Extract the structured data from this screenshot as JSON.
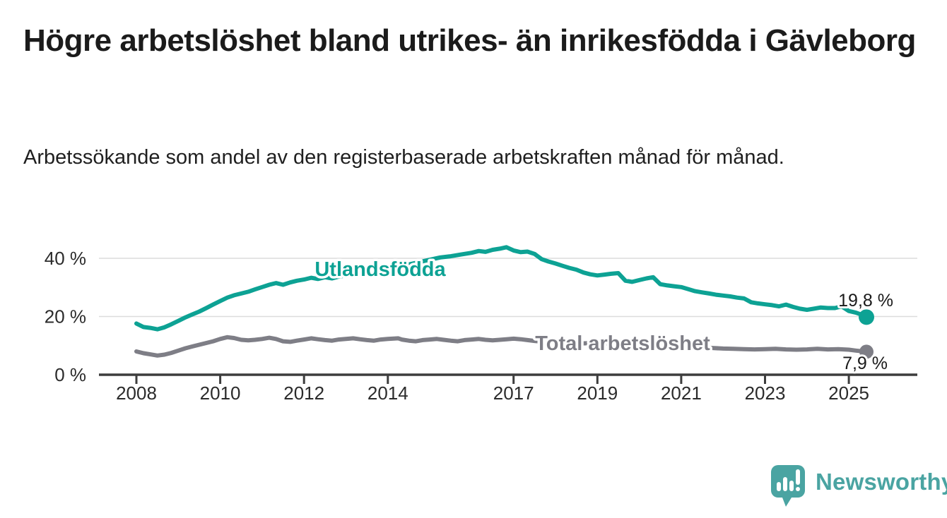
{
  "header": {
    "title": "Högre arbetslöshet bland utrikes- än inrikesfödda i Gävleborg",
    "subtitle": "Arbetssökande som andel av den registerbaserade arbetskraften månad för månad."
  },
  "branding": {
    "logo_text": "Newsworthy",
    "logo_icon": "speech-bubble-bar-chart-icon",
    "brand_color": "#4AA4A2"
  },
  "colors": {
    "series_utlandsfodda": "#0DA294",
    "series_total": "#7E7E86",
    "axis": "#3D3D3D",
    "gridline": "#DCDCDC",
    "tick_text": "#2B2B2B",
    "value_text": "#1A1A1A",
    "background": "#FFFFFF"
  },
  "chart_data": {
    "type": "line",
    "title": "Högre arbetslöshet bland utrikes- än inrikesfödda i Gävleborg",
    "subtitle": "Arbetssökande som andel av den registerbaserade arbetskraften månad för månad.",
    "unit": "%",
    "grid": "horizontal-only",
    "legend_position": "inline-labels",
    "x_axis": {
      "ticks": [
        2008,
        2010,
        2012,
        2014,
        2017,
        2019,
        2021,
        2023,
        2025
      ],
      "range": [
        2007.1,
        2026.6
      ]
    },
    "y_axis": {
      "ticks": [
        0,
        20,
        40
      ],
      "tick_labels": [
        "0 %",
        "20 %",
        "40 %"
      ],
      "range": [
        0,
        48
      ]
    },
    "series": [
      {
        "name": "Utlandsfödda",
        "color": "#0DA294",
        "end_label": "19,8 %",
        "end_value": 19.8,
        "points": [
          [
            2008.0,
            17.6
          ],
          [
            2008.17,
            16.4
          ],
          [
            2008.33,
            16.1
          ],
          [
            2008.5,
            15.6
          ],
          [
            2008.67,
            16.3
          ],
          [
            2008.83,
            17.3
          ],
          [
            2009.0,
            18.5
          ],
          [
            2009.17,
            19.7
          ],
          [
            2009.33,
            20.7
          ],
          [
            2009.5,
            21.7
          ],
          [
            2009.67,
            22.9
          ],
          [
            2009.83,
            24.1
          ],
          [
            2010.0,
            25.3
          ],
          [
            2010.17,
            26.5
          ],
          [
            2010.33,
            27.3
          ],
          [
            2010.5,
            27.9
          ],
          [
            2010.67,
            28.5
          ],
          [
            2010.83,
            29.3
          ],
          [
            2011.0,
            30.1
          ],
          [
            2011.17,
            30.9
          ],
          [
            2011.33,
            31.5
          ],
          [
            2011.5,
            30.9
          ],
          [
            2011.67,
            31.7
          ],
          [
            2011.83,
            32.3
          ],
          [
            2012.0,
            32.7
          ],
          [
            2012.17,
            33.3
          ],
          [
            2012.33,
            32.9
          ],
          [
            2012.5,
            33.5
          ],
          [
            2012.67,
            33.1
          ],
          [
            2012.83,
            33.7
          ],
          [
            2013.0,
            34.1
          ],
          [
            2013.25,
            34.7
          ],
          [
            2013.5,
            35.3
          ],
          [
            2013.75,
            35.9
          ],
          [
            2014.0,
            36.5
          ],
          [
            2014.25,
            37.3
          ],
          [
            2014.5,
            37.9
          ],
          [
            2014.75,
            38.7
          ],
          [
            2015.0,
            39.5
          ],
          [
            2015.25,
            40.3
          ],
          [
            2015.5,
            40.7
          ],
          [
            2015.75,
            41.3
          ],
          [
            2016.0,
            41.9
          ],
          [
            2016.17,
            42.5
          ],
          [
            2016.33,
            42.2
          ],
          [
            2016.5,
            42.9
          ],
          [
            2016.67,
            43.3
          ],
          [
            2016.83,
            43.8
          ],
          [
            2017.0,
            42.7
          ],
          [
            2017.17,
            42.1
          ],
          [
            2017.33,
            42.3
          ],
          [
            2017.5,
            41.5
          ],
          [
            2017.67,
            39.7
          ],
          [
            2017.83,
            38.9
          ],
          [
            2018.0,
            38.2
          ],
          [
            2018.17,
            37.4
          ],
          [
            2018.33,
            36.7
          ],
          [
            2018.5,
            36.1
          ],
          [
            2018.67,
            35.1
          ],
          [
            2018.83,
            34.5
          ],
          [
            2019.0,
            34.1
          ],
          [
            2019.17,
            34.4
          ],
          [
            2019.33,
            34.7
          ],
          [
            2019.5,
            34.9
          ],
          [
            2019.67,
            32.3
          ],
          [
            2019.83,
            31.9
          ],
          [
            2020.0,
            32.5
          ],
          [
            2020.17,
            33.1
          ],
          [
            2020.33,
            33.5
          ],
          [
            2020.5,
            31.1
          ],
          [
            2020.67,
            30.7
          ],
          [
            2020.83,
            30.4
          ],
          [
            2021.0,
            30.1
          ],
          [
            2021.17,
            29.4
          ],
          [
            2021.33,
            28.7
          ],
          [
            2021.5,
            28.3
          ],
          [
            2021.67,
            27.9
          ],
          [
            2021.83,
            27.5
          ],
          [
            2022.0,
            27.2
          ],
          [
            2022.17,
            26.9
          ],
          [
            2022.33,
            26.5
          ],
          [
            2022.5,
            26.2
          ],
          [
            2022.67,
            24.9
          ],
          [
            2022.83,
            24.5
          ],
          [
            2023.0,
            24.2
          ],
          [
            2023.17,
            23.9
          ],
          [
            2023.33,
            23.5
          ],
          [
            2023.5,
            24.1
          ],
          [
            2023.67,
            23.3
          ],
          [
            2023.83,
            22.7
          ],
          [
            2024.0,
            22.3
          ],
          [
            2024.17,
            22.7
          ],
          [
            2024.33,
            23.1
          ],
          [
            2024.5,
            22.9
          ],
          [
            2024.67,
            22.9
          ],
          [
            2024.83,
            23.5
          ],
          [
            2025.0,
            21.9
          ],
          [
            2025.17,
            21.3
          ],
          [
            2025.33,
            20.5
          ],
          [
            2025.42,
            19.8
          ]
        ]
      },
      {
        "name": "Total arbetslöshet",
        "color": "#7E7E86",
        "end_label": "7,9 %",
        "end_value": 7.9,
        "points": [
          [
            2008.0,
            8.0
          ],
          [
            2008.17,
            7.4
          ],
          [
            2008.33,
            7.0
          ],
          [
            2008.5,
            6.6
          ],
          [
            2008.67,
            6.9
          ],
          [
            2008.83,
            7.5
          ],
          [
            2009.0,
            8.3
          ],
          [
            2009.17,
            9.1
          ],
          [
            2009.33,
            9.7
          ],
          [
            2009.5,
            10.3
          ],
          [
            2009.67,
            10.9
          ],
          [
            2009.83,
            11.5
          ],
          [
            2010.0,
            12.3
          ],
          [
            2010.17,
            12.9
          ],
          [
            2010.33,
            12.6
          ],
          [
            2010.5,
            12.0
          ],
          [
            2010.67,
            11.8
          ],
          [
            2010.83,
            12.0
          ],
          [
            2011.0,
            12.3
          ],
          [
            2011.17,
            12.7
          ],
          [
            2011.33,
            12.3
          ],
          [
            2011.5,
            11.5
          ],
          [
            2011.67,
            11.3
          ],
          [
            2011.83,
            11.7
          ],
          [
            2012.0,
            12.1
          ],
          [
            2012.17,
            12.5
          ],
          [
            2012.33,
            12.2
          ],
          [
            2012.5,
            11.9
          ],
          [
            2012.67,
            11.7
          ],
          [
            2012.83,
            12.1
          ],
          [
            2013.0,
            12.3
          ],
          [
            2013.17,
            12.5
          ],
          [
            2013.33,
            12.2
          ],
          [
            2013.5,
            11.9
          ],
          [
            2013.67,
            11.7
          ],
          [
            2013.83,
            12.1
          ],
          [
            2014.0,
            12.3
          ],
          [
            2014.25,
            12.5
          ],
          [
            2014.33,
            12.1
          ],
          [
            2014.5,
            11.7
          ],
          [
            2014.67,
            11.5
          ],
          [
            2014.83,
            11.9
          ],
          [
            2015.0,
            12.1
          ],
          [
            2015.17,
            12.3
          ],
          [
            2015.33,
            12.0
          ],
          [
            2015.5,
            11.7
          ],
          [
            2015.67,
            11.5
          ],
          [
            2015.83,
            11.9
          ],
          [
            2016.0,
            12.1
          ],
          [
            2016.17,
            12.3
          ],
          [
            2016.33,
            12.0
          ],
          [
            2016.5,
            11.8
          ],
          [
            2016.67,
            12.0
          ],
          [
            2016.83,
            12.2
          ],
          [
            2017.0,
            12.4
          ],
          [
            2017.17,
            12.2
          ],
          [
            2017.33,
            11.9
          ],
          [
            2017.5,
            11.6
          ],
          [
            2017.67,
            11.4
          ],
          [
            2017.83,
            11.2
          ],
          [
            2018.0,
            11.1
          ],
          [
            2018.25,
            10.9
          ],
          [
            2018.5,
            10.7
          ],
          [
            2018.75,
            10.8
          ],
          [
            2019.0,
            11.0
          ],
          [
            2019.25,
            10.7
          ],
          [
            2019.5,
            10.4
          ],
          [
            2019.75,
            10.2
          ],
          [
            2020.0,
            10.4
          ],
          [
            2020.25,
            10.9
          ],
          [
            2020.5,
            10.7
          ],
          [
            2020.75,
            10.2
          ],
          [
            2021.0,
            9.9
          ],
          [
            2021.25,
            9.6
          ],
          [
            2021.5,
            9.4
          ],
          [
            2021.75,
            9.2
          ],
          [
            2022.0,
            9.0
          ],
          [
            2022.25,
            8.9
          ],
          [
            2022.5,
            8.8
          ],
          [
            2022.75,
            8.7
          ],
          [
            2023.0,
            8.8
          ],
          [
            2023.25,
            8.9
          ],
          [
            2023.5,
            8.7
          ],
          [
            2023.75,
            8.6
          ],
          [
            2024.0,
            8.7
          ],
          [
            2024.25,
            8.9
          ],
          [
            2024.5,
            8.7
          ],
          [
            2024.75,
            8.8
          ],
          [
            2025.0,
            8.6
          ],
          [
            2025.17,
            8.3
          ],
          [
            2025.42,
            7.9
          ]
        ]
      }
    ]
  }
}
